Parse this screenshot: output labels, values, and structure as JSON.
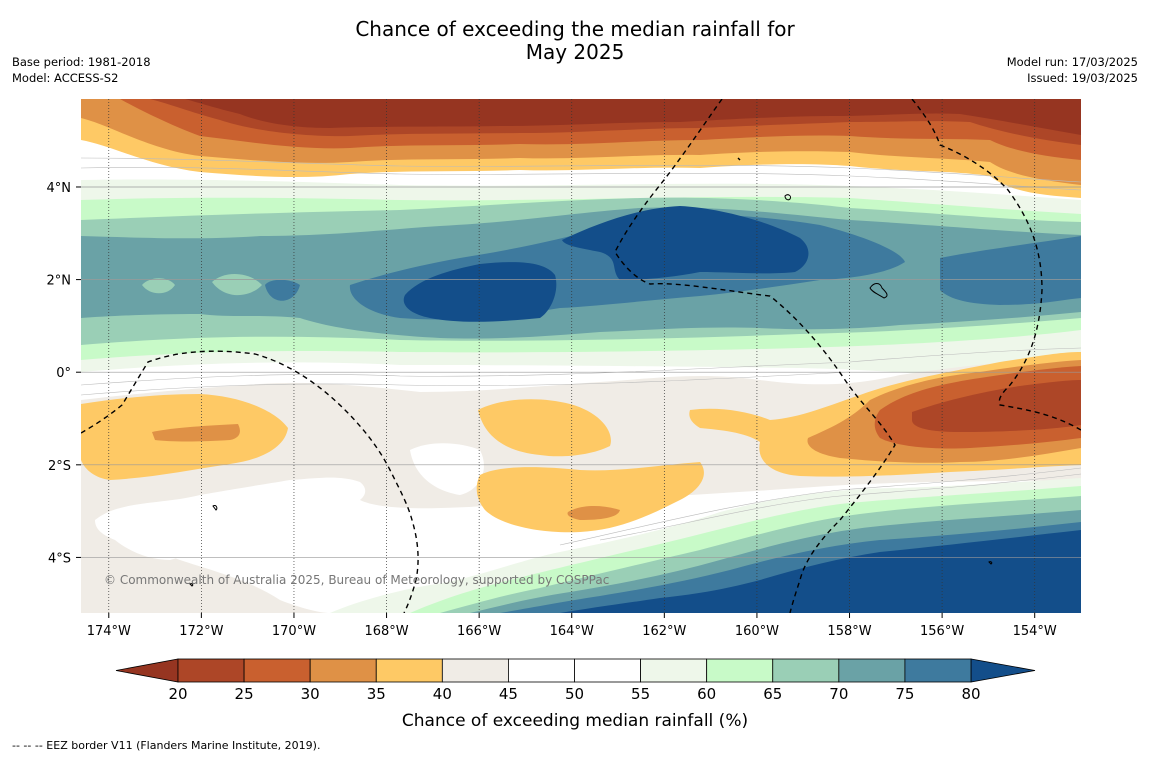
{
  "title_line1": "Chance of exceeding the median rainfall for",
  "title_line2": "May 2025",
  "meta_left": [
    "Base period: 1981-2018",
    "Model: ACCESS-S2"
  ],
  "meta_right": [
    "Model run: 17/03/2025",
    "Issued: 19/03/2025"
  ],
  "copyright": "© Commonwealth of Australia 2025, Bureau of Meteorology, supported by COSPPac",
  "footer": "--  --  -- EEZ border V11 (Flanders Marine Institute, 2019).",
  "map": {
    "lon_range": [
      -174.6,
      -153.0
    ],
    "lat_range": [
      -5.2,
      5.9
    ],
    "lon_ticks": [
      {
        "v": -174,
        "label": "174°W"
      },
      {
        "v": -172,
        "label": "172°W"
      },
      {
        "v": -170,
        "label": "170°W"
      },
      {
        "v": -168,
        "label": "168°W"
      },
      {
        "v": -166,
        "label": "166°W"
      },
      {
        "v": -164,
        "label": "164°W"
      },
      {
        "v": -162,
        "label": "162°W"
      },
      {
        "v": -160,
        "label": "160°W"
      },
      {
        "v": -158,
        "label": "158°W"
      },
      {
        "v": -156,
        "label": "156°W"
      },
      {
        "v": -154,
        "label": "154°W"
      }
    ],
    "lat_ticks": [
      {
        "v": 4,
        "label": "4°N"
      },
      {
        "v": 2,
        "label": "2°N"
      },
      {
        "v": 0,
        "label": "0°"
      },
      {
        "v": -2,
        "label": "2°S"
      },
      {
        "v": -4,
        "label": "4°S"
      }
    ]
  },
  "colorbar": {
    "label": "Chance of exceeding median rainfall (%)",
    "ticks": [
      "20",
      "25",
      "30",
      "35",
      "40",
      "45",
      "50",
      "55",
      "60",
      "65",
      "70",
      "75",
      "80"
    ],
    "colors": [
      "#ad4627",
      "#c9602f",
      "#df9146",
      "#fec965",
      "#f0ece6",
      "#ffffff",
      "#ffffff",
      "#eef7ea",
      "#c8fac8",
      "#9acfb6",
      "#6aa2a6",
      "#3e7a9e"
    ],
    "under_color": "#963521",
    "over_color": "#134e8a"
  }
}
